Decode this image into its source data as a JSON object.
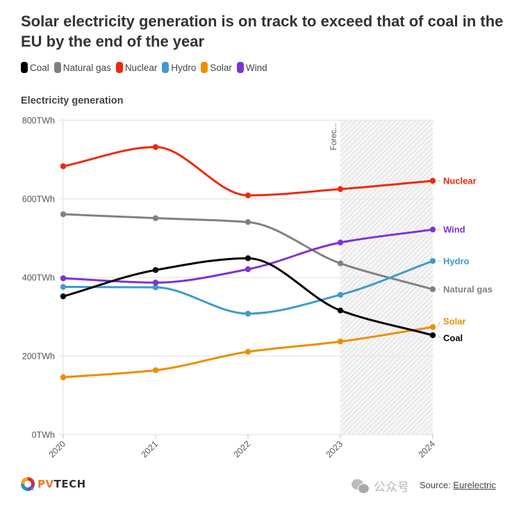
{
  "header": {
    "title": "Solar electricity generation is on track to exceed that of coal in the EU by the end of the year"
  },
  "colors": {
    "Coal": "#000000",
    "Natural gas": "#808080",
    "Nuclear": "#ee2a0c",
    "Hydro": "#3d9bcc",
    "Solar": "#ee8d00",
    "Wind": "#7f32d2",
    "grid": "#e8e8e8",
    "forecast_hatch": "#d0d0d0"
  },
  "footer": {
    "logo_text_pv": "PV",
    "logo_text_tech": "TECH",
    "watermark_text": "公众号",
    "source_label": "Source: ",
    "source_link": "Eurelectric"
  },
  "chart_data": {
    "type": "line",
    "title": "Solar electricity generation is on track to exceed that of coal in the EU by the end of the year",
    "subtitle": "Electricity generation",
    "xlabel": "",
    "ylabel": "Electricity generation",
    "x": [
      "2020",
      "2021",
      "2022",
      "2023",
      "2024"
    ],
    "ylim": [
      0,
      800
    ],
    "y_ticks": [
      0,
      200,
      400,
      600,
      800
    ],
    "y_tick_labels": [
      "0TWh",
      "200TWh",
      "400TWh",
      "600TWh",
      "800TWh"
    ],
    "y_unit": "TWh",
    "grid": true,
    "legend_position": "top-left",
    "legend": [
      "Coal",
      "Natural gas",
      "Nuclear",
      "Hydro",
      "Solar",
      "Wind"
    ],
    "annotation": {
      "label": "Forec...",
      "full_label": "Forecast",
      "x_start": "2023",
      "x_end": "2024"
    },
    "series": [
      {
        "name": "Coal",
        "values": [
          352,
          419,
          449,
          316,
          253
        ]
      },
      {
        "name": "Natural gas",
        "values": [
          561,
          551,
          541,
          436,
          370
        ]
      },
      {
        "name": "Nuclear",
        "values": [
          683,
          732,
          609,
          625,
          646
        ]
      },
      {
        "name": "Hydro",
        "values": [
          376,
          375,
          308,
          356,
          442
        ]
      },
      {
        "name": "Solar",
        "values": [
          146,
          164,
          211,
          237,
          274
        ]
      },
      {
        "name": "Wind",
        "values": [
          398,
          387,
          421,
          489,
          522
        ]
      }
    ],
    "end_labels": [
      {
        "series": "Nuclear",
        "label": "Nuclear"
      },
      {
        "series": "Wind",
        "label": "Wind"
      },
      {
        "series": "Hydro",
        "label": "Hydro"
      },
      {
        "series": "Natural gas",
        "label": "Natural gas"
      },
      {
        "series": "Solar",
        "label": "Solar"
      },
      {
        "series": "Coal",
        "label": "Coal"
      }
    ]
  }
}
